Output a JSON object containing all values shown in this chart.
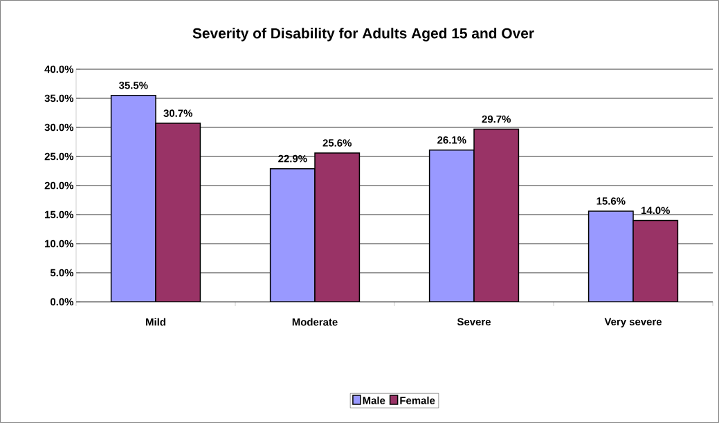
{
  "chart_data": {
    "type": "bar",
    "title": "Severity of Disability for Adults Aged 15 and Over",
    "categories": [
      "Mild",
      "Moderate",
      "Severe",
      "Very severe"
    ],
    "series": [
      {
        "name": "Male",
        "color": "#9999ff",
        "values": [
          35.5,
          22.9,
          26.1,
          15.6
        ],
        "value_labels": [
          "35.5%",
          "22.9%",
          "26.1%",
          "15.6%"
        ]
      },
      {
        "name": "Female",
        "color": "#993366",
        "values": [
          30.7,
          25.6,
          29.7,
          14.0
        ],
        "value_labels": [
          "30.7%",
          "25.6%",
          "29.7%",
          "14.0%"
        ]
      }
    ],
    "ylim": [
      0,
      40
    ],
    "yticks": [
      {
        "value": 0,
        "label": "0.0%"
      },
      {
        "value": 5,
        "label": "5.0%"
      },
      {
        "value": 10,
        "label": "10.0%"
      },
      {
        "value": 15,
        "label": "15.0%"
      },
      {
        "value": 20,
        "label": "20.0%"
      },
      {
        "value": 25,
        "label": "25.0%"
      },
      {
        "value": 30,
        "label": "30.0%"
      },
      {
        "value": 35,
        "label": "35.0%"
      },
      {
        "value": 40,
        "label": "40.0%"
      }
    ],
    "grid": "y",
    "legend": "bottom"
  }
}
